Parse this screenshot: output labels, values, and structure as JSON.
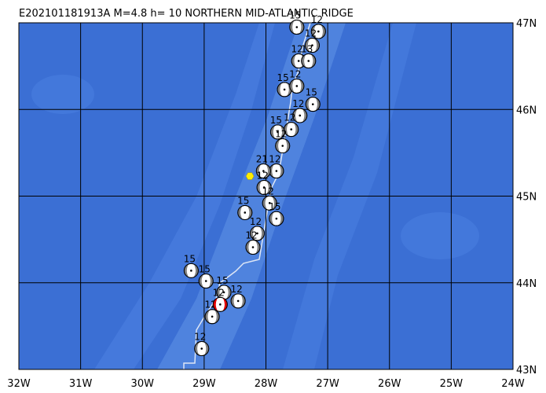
{
  "title": "E202101181913A  M=4.8  h= 10 NORTHERN MID-ATLANTIC RIDGE",
  "lonlim": [
    -32,
    -24
  ],
  "latlim": [
    43,
    47
  ],
  "lonticks": [
    {
      "value": -32,
      "label": "32W"
    },
    {
      "value": -31,
      "label": "31W"
    },
    {
      "value": -30,
      "label": "30W"
    },
    {
      "value": -29,
      "label": "29W"
    },
    {
      "value": -28,
      "label": "28W"
    },
    {
      "value": -27,
      "label": "27W"
    },
    {
      "value": -26,
      "label": "26W"
    },
    {
      "value": -25,
      "label": "25W"
    },
    {
      "value": -24,
      "label": "24W"
    }
  ],
  "latticks": [
    {
      "value": 47,
      "label": "47N"
    },
    {
      "value": 46,
      "label": "46N"
    },
    {
      "value": 45,
      "label": "45N"
    },
    {
      "value": 44,
      "label": "44N"
    },
    {
      "value": 43,
      "label": "43N"
    }
  ],
  "marker": {
    "lon": -28.26,
    "lat": 45.23,
    "color": "#ffee00"
  },
  "events": [
    {
      "lon": -27.5,
      "lat": 46.95,
      "label": "15",
      "color": "#808080"
    },
    {
      "lon": -27.15,
      "lat": 46.9,
      "label": "12",
      "color": "#808080"
    },
    {
      "lon": -27.25,
      "lat": 46.74,
      "label": "12",
      "color": "#808080"
    },
    {
      "lon": -27.47,
      "lat": 46.56,
      "label": "12",
      "color": "#808080"
    },
    {
      "lon": -27.31,
      "lat": 46.56,
      "label": "13",
      "color": "#808080"
    },
    {
      "lon": -27.7,
      "lat": 46.23,
      "label": "15",
      "color": "#808080"
    },
    {
      "lon": -27.5,
      "lat": 46.27,
      "label": "12",
      "color": "#808080"
    },
    {
      "lon": -27.24,
      "lat": 46.06,
      "label": "15",
      "color": "#808080"
    },
    {
      "lon": -27.45,
      "lat": 45.93,
      "label": "12",
      "color": "#808080"
    },
    {
      "lon": -27.81,
      "lat": 45.74,
      "label": "15",
      "color": "#808080"
    },
    {
      "lon": -27.59,
      "lat": 45.77,
      "label": "12",
      "color": "#808080"
    },
    {
      "lon": -27.73,
      "lat": 45.58,
      "label": "12",
      "color": "#808080"
    },
    {
      "lon": -27.83,
      "lat": 45.29,
      "label": "12",
      "color": "#808080"
    },
    {
      "lon": -28.04,
      "lat": 45.29,
      "label": "21",
      "color": "#808080"
    },
    {
      "lon": -28.03,
      "lat": 45.1,
      "label": "12",
      "color": "#808080"
    },
    {
      "lon": -27.94,
      "lat": 44.92,
      "label": "12",
      "color": "#808080"
    },
    {
      "lon": -27.83,
      "lat": 44.74,
      "label": "15",
      "color": "#808080"
    },
    {
      "lon": -28.34,
      "lat": 44.81,
      "label": "15",
      "color": "#808080"
    },
    {
      "lon": -28.14,
      "lat": 44.57,
      "label": "12",
      "color": "#808080"
    },
    {
      "lon": -28.21,
      "lat": 44.41,
      "label": "12",
      "color": "#808080"
    },
    {
      "lon": -29.21,
      "lat": 44.14,
      "label": "15",
      "color": "#808080"
    },
    {
      "lon": -28.97,
      "lat": 44.02,
      "label": "15",
      "color": "#808080"
    },
    {
      "lon": -28.68,
      "lat": 43.89,
      "label": "15",
      "color": "#808080"
    },
    {
      "lon": -28.45,
      "lat": 43.79,
      "label": "12",
      "color": "#808080"
    },
    {
      "lon": -28.87,
      "lat": 43.61,
      "label": "12",
      "color": "#808080"
    },
    {
      "lon": -29.04,
      "lat": 43.24,
      "label": "12",
      "color": "#808080"
    },
    {
      "lon": -28.74,
      "lat": 43.75,
      "label": "12",
      "color": "#e00000"
    }
  ]
}
